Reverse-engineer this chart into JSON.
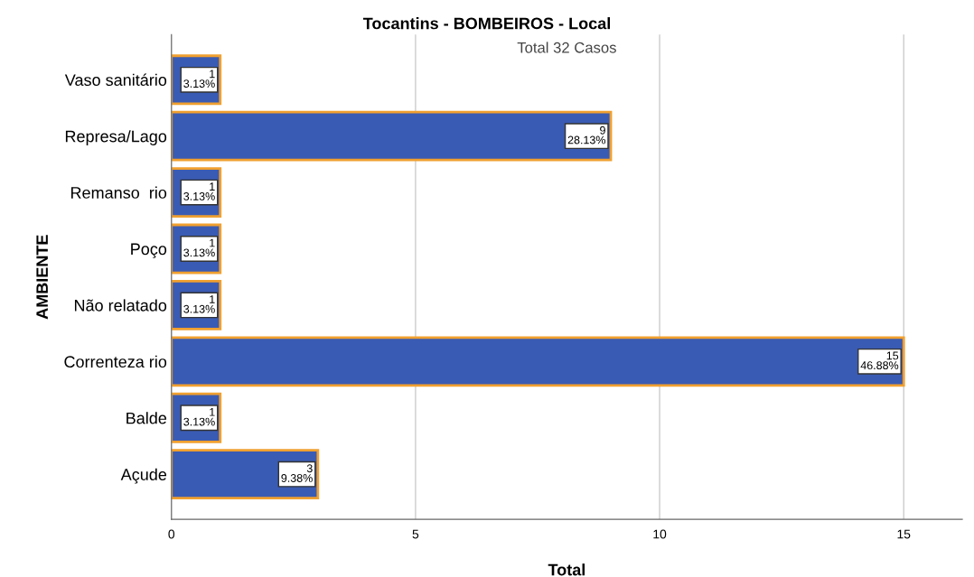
{
  "chart_data": {
    "type": "bar",
    "orientation": "horizontal",
    "title": "Tocantins - BOMBEIROS - Local",
    "subtitle": "Total 32 Casos",
    "xlabel": "Total",
    "ylabel": "AMBIENTE",
    "categories": [
      "Vaso sanitário",
      "Represa/Lago",
      "Remanso  rio",
      "Poço",
      "Não relatado",
      "Correnteza rio",
      "Balde",
      "Açude"
    ],
    "values": [
      1,
      9,
      1,
      1,
      1,
      15,
      1,
      3
    ],
    "value_labels": [
      "1\n3.13%",
      "9\n28.13%",
      "1\n3.13%",
      "1\n3.13%",
      "1\n3.13%",
      "15\n46.88%",
      "1\n3.13%",
      "3\n9.38%"
    ],
    "color": "#3a5bb3",
    "xlim": [
      0,
      16.2
    ],
    "xticks": [
      0,
      5,
      10,
      15
    ],
    "grid": "x",
    "legend": false
  }
}
